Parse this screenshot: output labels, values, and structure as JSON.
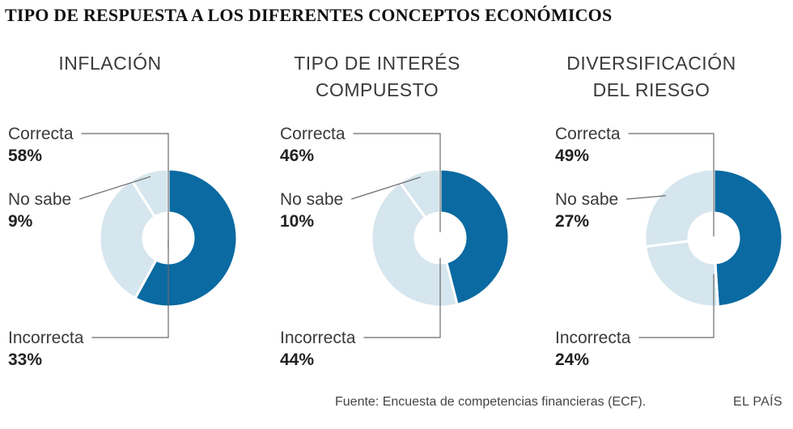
{
  "title": "TIPO DE RESPUESTA A LOS DIFERENTES CONCEPTOS ECONÓMICOS",
  "source": "Fuente: Encuesta de competencias financieras (ECF).",
  "brand": "EL PAÍS",
  "colors": {
    "correcta": "#0a6aa1",
    "no_sabe": "#d6e6ee",
    "incorrecta": "#d6e6ee",
    "separator": "#ffffff"
  },
  "chart_data": [
    {
      "type": "pie",
      "title_lines": [
        "INFLACIÓN"
      ],
      "slices": [
        {
          "label": "Correcta",
          "value": 58,
          "display": "58%"
        },
        {
          "label": "Incorrecta",
          "value": 33,
          "display": "33%"
        },
        {
          "label": "No sabe",
          "value": 9,
          "display": "9%"
        }
      ]
    },
    {
      "type": "pie",
      "title_lines": [
        "TIPO DE INTERÉS",
        "COMPUESTO"
      ],
      "slices": [
        {
          "label": "Correcta",
          "value": 46,
          "display": "46%"
        },
        {
          "label": "Incorrecta",
          "value": 44,
          "display": "44%"
        },
        {
          "label": "No sabe",
          "value": 10,
          "display": "10%"
        }
      ]
    },
    {
      "type": "pie",
      "title_lines": [
        "DIVERSIFICACIÓN",
        "DEL RIESGO"
      ],
      "slices": [
        {
          "label": "Correcta",
          "value": 49,
          "display": "49%"
        },
        {
          "label": "Incorrecta",
          "value": 24,
          "display": "24%"
        },
        {
          "label": "No sabe",
          "value": 27,
          "display": "27%"
        }
      ]
    }
  ]
}
